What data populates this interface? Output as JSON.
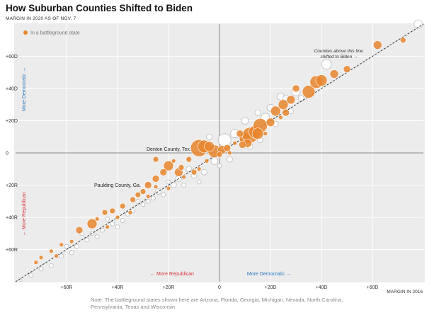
{
  "title": "How Suburban Counties Shifted to Biden",
  "subtitle": "MARGIN IN 2020 AS OF NOV. 7",
  "note": "Note: The battleground states shown here are Arizona, Florida, Georgia, Michigan, Nevada, North Carolina, Pennsylvania, Texas and Wisconsin",
  "colors": {
    "battleground": "#e8852d",
    "other_fill": "#ffffff",
    "other_stroke": "#bdbdbd",
    "background": "#ececec",
    "democratic": "#2a78c2",
    "republican": "#d9343a"
  },
  "chart_data": {
    "type": "scatter",
    "title": "How Suburban Counties Shifted to Biden",
    "ylabel": "MARGIN IN 2020 AS OF NOV. 7",
    "xlabel": "MARGIN IN 2016",
    "xlim": [
      -80,
      80
    ],
    "ylim": [
      -80,
      80
    ],
    "x_ticks": [
      "+60R",
      "+40R",
      "+20R",
      "0",
      "+20D",
      "+40D",
      "+60D"
    ],
    "x_tick_values": [
      -60,
      -40,
      -20,
      0,
      20,
      40,
      60
    ],
    "y_ticks": [
      "+60D",
      "+40D",
      "+20D",
      "0",
      "+20R",
      "+40R",
      "+60R"
    ],
    "y_tick_values": [
      60,
      40,
      20,
      0,
      -20,
      -40,
      -60
    ],
    "legend": {
      "label": "In a battleground state",
      "placement": "top-left"
    },
    "side_labels": {
      "x_more_republican": "← More Republican",
      "x_more_democratic": "More Democratic →",
      "y_more_democratic": "More Democratic →",
      "y_more_republican": "← More Republican"
    },
    "annotations": [
      {
        "text": "Counties above this line shifted to Biden →",
        "x": 40,
        "y": 58
      },
      {
        "text": "Denton County, Tex.",
        "x": -8,
        "y": 3
      },
      {
        "text": "Paulding County, Ga.",
        "x": -34,
        "y": -23
      }
    ],
    "grid": true,
    "reference_line": "y = x (dashed)",
    "series": [
      {
        "name": "In a battleground state",
        "points": [
          [
            -8,
            3,
            12
          ],
          [
            -6,
            4,
            9
          ],
          [
            -2,
            1,
            9
          ],
          [
            1,
            2,
            6
          ],
          [
            0,
            -1,
            4
          ],
          [
            3,
            3,
            5
          ],
          [
            -4,
            4,
            7
          ],
          [
            10,
            9,
            8
          ],
          [
            12,
            11,
            11
          ],
          [
            14,
            13,
            9
          ],
          [
            16,
            17,
            10
          ],
          [
            15,
            12,
            8
          ],
          [
            11,
            6,
            6
          ],
          [
            8,
            12,
            5
          ],
          [
            9,
            5,
            5
          ],
          [
            20,
            19,
            6
          ],
          [
            22,
            26,
            7
          ],
          [
            25,
            30,
            7
          ],
          [
            28,
            33,
            6
          ],
          [
            26,
            25,
            5
          ],
          [
            30,
            40,
            5
          ],
          [
            35,
            38,
            9
          ],
          [
            38,
            44,
            9
          ],
          [
            40,
            45,
            8
          ],
          [
            45,
            49,
            6
          ],
          [
            50,
            52,
            5
          ],
          [
            62,
            67,
            6
          ],
          [
            72,
            70,
            4
          ],
          [
            -20,
            -8,
            7
          ],
          [
            -16,
            -12,
            6
          ],
          [
            -22,
            -12,
            5
          ],
          [
            -25,
            -16,
            5
          ],
          [
            -28,
            -20,
            5
          ],
          [
            -30,
            -24,
            4
          ],
          [
            -32,
            -26,
            4
          ],
          [
            -34,
            -29,
            4
          ],
          [
            -25,
            -4,
            4
          ],
          [
            -18,
            -5,
            3
          ],
          [
            -12,
            -4,
            4
          ],
          [
            -15,
            -9,
            4
          ],
          [
            -10,
            -12,
            4
          ],
          [
            -14,
            -15,
            3
          ],
          [
            -38,
            -33,
            4
          ],
          [
            -42,
            -36,
            4
          ],
          [
            -45,
            -37,
            4
          ],
          [
            -48,
            -41,
            3
          ],
          [
            -50,
            -44,
            7
          ],
          [
            -55,
            -48,
            5
          ],
          [
            -58,
            -55,
            3
          ],
          [
            -62,
            -57,
            3
          ],
          [
            -66,
            -61,
            3
          ],
          [
            -70,
            -65,
            3
          ],
          [
            -72,
            -68,
            3
          ],
          [
            -40,
            -40,
            3
          ],
          [
            -35,
            -37,
            3
          ],
          [
            -25,
            -21,
            3
          ],
          [
            -28,
            -27,
            3
          ],
          [
            -5,
            -5,
            3
          ],
          [
            4,
            0,
            3
          ],
          [
            6,
            6,
            3
          ],
          [
            18,
            12,
            3
          ],
          [
            24,
            22,
            3
          ],
          [
            -8,
            -10,
            3
          ],
          [
            -20,
            -22,
            3
          ],
          [
            -44,
            -46,
            3
          ],
          [
            -64,
            -64,
            3
          ]
        ]
      },
      {
        "name": "",
        "points": [
          [
            78,
            80,
            6
          ],
          [
            42,
            55,
            7
          ],
          [
            38,
            45,
            6
          ],
          [
            30,
            38,
            6
          ],
          [
            24,
            35,
            5
          ],
          [
            20,
            28,
            5
          ],
          [
            18,
            22,
            6
          ],
          [
            15,
            25,
            4
          ],
          [
            22,
            18,
            4
          ],
          [
            26,
            34,
            4
          ],
          [
            10,
            20,
            5
          ],
          [
            6,
            12,
            6
          ],
          [
            2,
            8,
            9
          ],
          [
            -2,
            -5,
            5
          ],
          [
            -4,
            10,
            4
          ],
          [
            4,
            -4,
            4
          ],
          [
            -6,
            -12,
            4
          ],
          [
            -10,
            -14,
            4
          ],
          [
            -12,
            -10,
            4
          ],
          [
            -16,
            -16,
            4
          ],
          [
            -18,
            -20,
            4
          ],
          [
            -20,
            -18,
            3
          ],
          [
            -24,
            -24,
            4
          ],
          [
            -26,
            -28,
            3
          ],
          [
            -30,
            -32,
            3
          ],
          [
            -32,
            -30,
            3
          ],
          [
            -36,
            -38,
            3
          ],
          [
            -38,
            -42,
            3
          ],
          [
            -42,
            -44,
            3
          ],
          [
            -46,
            -48,
            3
          ],
          [
            -48,
            -52,
            3
          ],
          [
            -52,
            -54,
            3
          ],
          [
            -56,
            -58,
            3
          ],
          [
            -58,
            -62,
            3
          ],
          [
            -62,
            -64,
            3
          ],
          [
            -66,
            -70,
            3
          ],
          [
            -70,
            -72,
            3
          ],
          [
            -74,
            -76,
            3
          ],
          [
            -78,
            -79,
            2
          ],
          [
            -44,
            -41,
            3
          ],
          [
            -40,
            -46,
            3
          ],
          [
            -34,
            -36,
            3
          ],
          [
            -28,
            -30,
            3
          ],
          [
            -22,
            -26,
            3
          ],
          [
            -14,
            -20,
            3
          ],
          [
            -8,
            -18,
            3
          ],
          [
            0,
            -8,
            3
          ],
          [
            12,
            4,
            4
          ],
          [
            16,
            8,
            4
          ],
          [
            28,
            26,
            4
          ],
          [
            32,
            34,
            4
          ],
          [
            36,
            40,
            4
          ],
          [
            -50,
            -50,
            3
          ],
          [
            -54,
            -50,
            3
          ],
          [
            -60,
            -58,
            3
          ]
        ]
      }
    ]
  }
}
